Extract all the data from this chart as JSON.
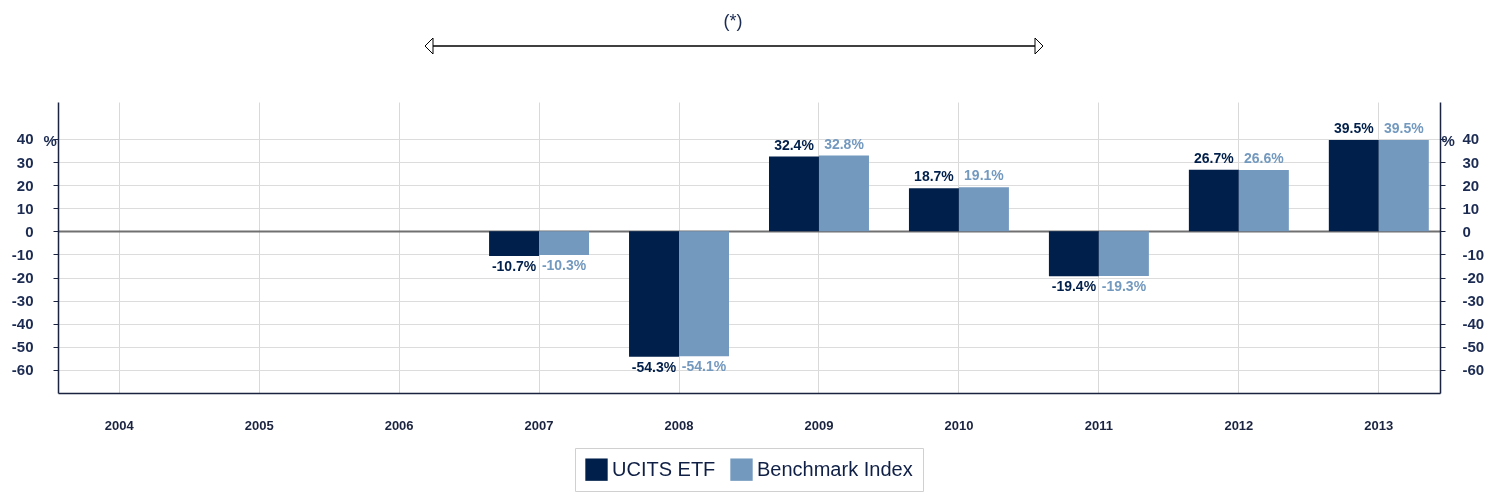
{
  "chart_data": {
    "type": "bar",
    "categories": [
      "2004",
      "2005",
      "2006",
      "2007",
      "2008",
      "2009",
      "2010",
      "2011",
      "2012",
      "2013"
    ],
    "series": [
      {
        "name": "UCITS ETF",
        "color": "#001f4a",
        "values": [
          null,
          null,
          null,
          -10.7,
          -54.3,
          32.4,
          18.7,
          -19.4,
          26.7,
          39.5
        ],
        "value_labels": [
          null,
          null,
          null,
          "-10.7%",
          "-54.3%",
          "32.4%",
          "18.7%",
          "-19.4%",
          "26.7%",
          "39.5%"
        ]
      },
      {
        "name": "Benchmark Index",
        "color": "#7399bf",
        "values": [
          null,
          null,
          null,
          -10.3,
          -54.1,
          32.8,
          19.1,
          -19.3,
          26.6,
          39.5
        ],
        "value_labels": [
          null,
          null,
          null,
          "-10.3%",
          "-54.1%",
          "32.8%",
          "19.1%",
          "-19.3%",
          "26.6%",
          "39.5%"
        ]
      }
    ],
    "ylim": [
      -70,
      56
    ],
    "yticks": [
      -60,
      -50,
      -40,
      -30,
      -20,
      -10,
      0,
      10,
      20,
      30,
      40
    ],
    "ylabel": "%",
    "y2lim": [
      -70,
      56
    ],
    "y2ticks": [
      -60,
      -50,
      -40,
      -30,
      -20,
      -10,
      0,
      10,
      20,
      30,
      40
    ],
    "y2label": "%",
    "grid": true,
    "legend": "bottom",
    "annotations": [
      "(*)"
    ]
  }
}
